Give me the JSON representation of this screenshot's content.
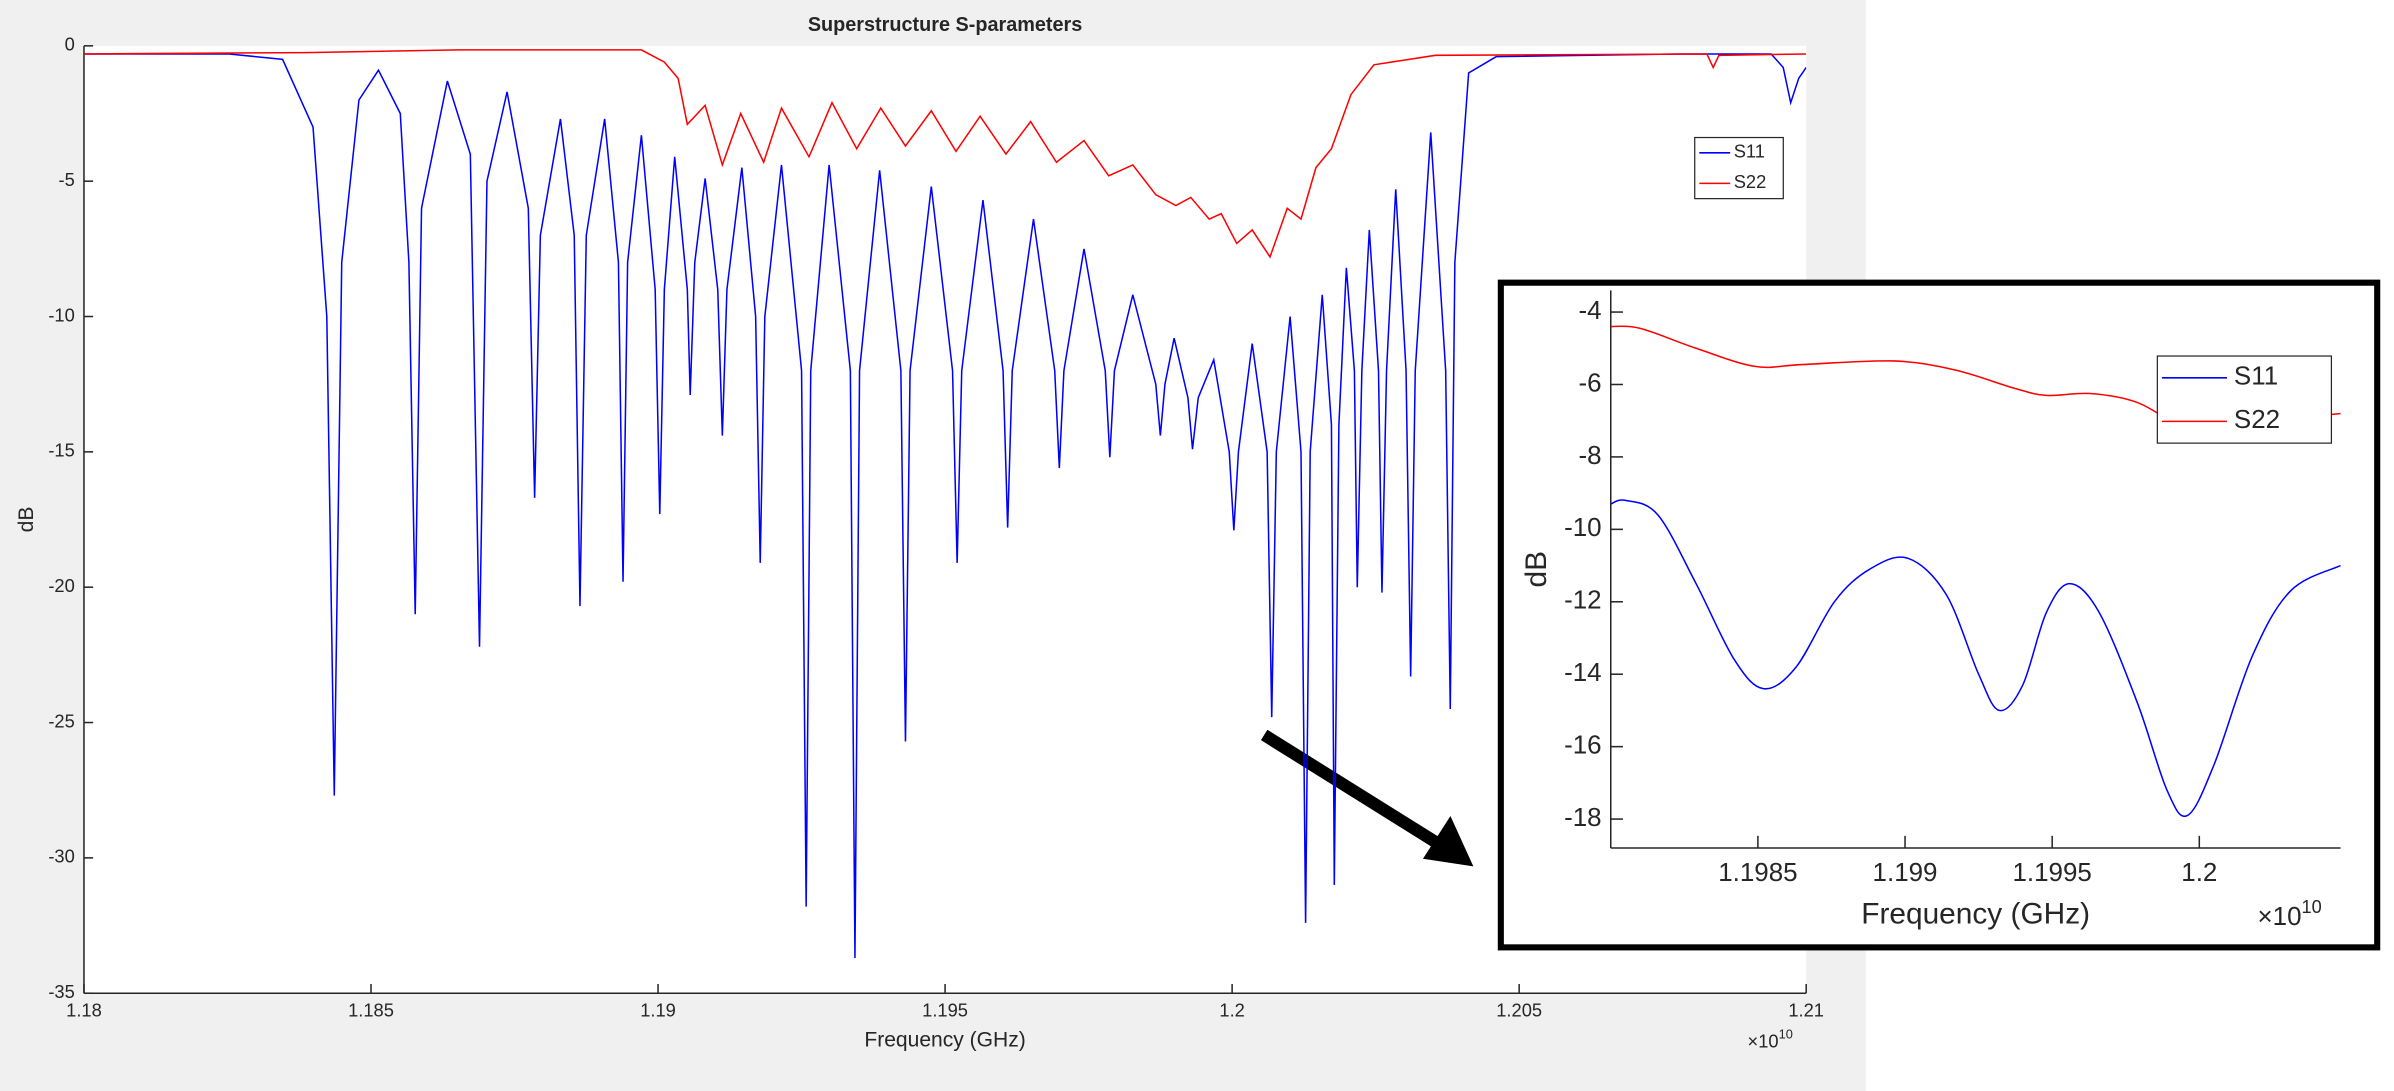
{
  "chart_data": [
    {
      "type": "line",
      "title": "Superstructure S-parameters",
      "xlabel": "Frequency (GHz)",
      "ylabel": "dB",
      "x_multiplier": {
        "base": "×10",
        "power": "10"
      },
      "xlim": [
        1.18,
        1.21
      ],
      "ylim": [
        -35,
        0
      ],
      "xticks": [
        1.18,
        1.185,
        1.19,
        1.195,
        1.2,
        1.205,
        1.21
      ],
      "yticks": [
        0,
        -5,
        -10,
        -15,
        -20,
        -25,
        -30,
        -35
      ],
      "legend": "northeast",
      "grid": false,
      "series": [
        {
          "name": "S11",
          "color": "#0000ff",
          "x": [
            1.18,
            1.18253,
            1.18346,
            1.18399,
            1.18423,
            1.18436,
            1.18449,
            1.18479,
            1.18513,
            1.18551,
            1.18566,
            1.18577,
            1.18588,
            1.18633,
            1.18673,
            1.18689,
            1.18702,
            1.18737,
            1.18774,
            1.18785,
            1.18795,
            1.1883,
            1.18854,
            1.18864,
            1.18875,
            1.18907,
            1.18931,
            1.18939,
            1.18947,
            1.18971,
            1.18995,
            1.19003,
            1.19011,
            1.19029,
            1.19051,
            1.19056,
            1.19064,
            1.19082,
            1.19104,
            1.19112,
            1.1912,
            1.19146,
            1.1917,
            1.19178,
            1.19186,
            1.19215,
            1.1925,
            1.19258,
            1.19266,
            1.19298,
            1.19335,
            1.19343,
            1.19351,
            1.19386,
            1.19423,
            1.19431,
            1.19439,
            1.19476,
            1.19513,
            1.19521,
            1.19529,
            1.19566,
            1.19601,
            1.19609,
            1.19617,
            1.19654,
            1.19691,
            1.19699,
            1.19707,
            1.19742,
            1.19779,
            1.19787,
            1.19795,
            1.19827,
            1.19867,
            1.19875,
            1.19883,
            1.19899,
            1.19923,
            1.19931,
            1.19941,
            1.19968,
            1.19995,
            1.20003,
            1.20011,
            1.20035,
            1.20061,
            1.20069,
            1.20077,
            1.20101,
            1.2012,
            1.20128,
            1.20136,
            1.20157,
            1.20173,
            1.20178,
            1.20186,
            1.20199,
            1.20213,
            1.20218,
            1.20226,
            1.20239,
            1.20255,
            1.20261,
            1.20269,
            1.20285,
            1.20303,
            1.20311,
            1.20319,
            1.20346,
            1.20372,
            1.2038,
            1.20388,
            1.20412,
            1.2046,
            1.20779,
            1.20939,
            1.2096,
            1.20973,
            1.20987,
            1.21
          ],
          "values": [
            -0.3,
            -0.3,
            -0.5,
            -3,
            -10,
            -27.7,
            -8,
            -2,
            -0.9,
            -2.5,
            -8,
            -21,
            -6,
            -1.3,
            -4,
            -22.2,
            -5,
            -1.7,
            -6,
            -16.7,
            -7,
            -2.7,
            -7,
            -20.7,
            -7,
            -2.7,
            -8,
            -19.8,
            -8,
            -3.3,
            -9,
            -17.3,
            -9,
            -4.1,
            -9,
            -12.9,
            -8,
            -4.9,
            -9,
            -14.4,
            -9,
            -4.5,
            -10,
            -19.1,
            -10,
            -4.4,
            -12,
            -31.8,
            -12,
            -4.4,
            -12,
            -33.7,
            -12,
            -4.6,
            -12,
            -25.7,
            -12,
            -5.2,
            -12,
            -19.1,
            -12,
            -5.7,
            -12,
            -17.8,
            -12,
            -6.4,
            -12,
            -15.6,
            -12,
            -7.5,
            -12,
            -15.2,
            -12,
            -9.2,
            -12.5,
            -14.4,
            -12.5,
            -10.8,
            -13,
            -14.9,
            -13,
            -11.6,
            -15,
            -17.9,
            -15,
            -11,
            -15,
            -24.8,
            -15,
            -10,
            -15,
            -32.4,
            -15,
            -9.2,
            -14,
            -31,
            -14,
            -8.2,
            -12,
            -20,
            -12,
            -6.8,
            -12,
            -20.2,
            -12,
            -5.3,
            -12,
            -23.3,
            -12,
            -3.2,
            -12,
            -24.5,
            -8,
            -1,
            -0.4,
            -0.3,
            -0.3,
            -0.8,
            -2.1,
            -1.2,
            -0.8
          ]
        },
        {
          "name": "S22",
          "color": "#ff0000",
          "x": [
            1.18,
            1.18386,
            1.18652,
            1.18971,
            1.19011,
            1.19035,
            1.19051,
            1.19082,
            1.19112,
            1.19144,
            1.19184,
            1.19215,
            1.19263,
            1.19303,
            1.19346,
            1.19388,
            1.19431,
            1.19476,
            1.19519,
            1.19561,
            1.19606,
            1.19649,
            1.19694,
            1.19742,
            1.19785,
            1.19827,
            1.19867,
            1.19902,
            1.19928,
            1.1996,
            1.19981,
            1.20008,
            1.20035,
            1.20066,
            1.20096,
            1.2012,
            1.20146,
            1.20173,
            1.20207,
            1.20247,
            1.20354,
            1.20827,
            1.20838,
            1.20848,
            1.21
          ],
          "values": [
            -0.3,
            -0.25,
            -0.15,
            -0.15,
            -0.6,
            -1.2,
            -2.9,
            -2.2,
            -4.4,
            -2.5,
            -4.3,
            -2.3,
            -4.1,
            -2.1,
            -3.8,
            -2.3,
            -3.7,
            -2.4,
            -3.9,
            -2.6,
            -4,
            -2.8,
            -4.3,
            -3.5,
            -4.8,
            -4.4,
            -5.5,
            -5.9,
            -5.6,
            -6.4,
            -6.2,
            -7.3,
            -6.8,
            -7.8,
            -6,
            -6.4,
            -4.5,
            -3.8,
            -1.8,
            -0.7,
            -0.35,
            -0.3,
            -0.8,
            -0.35,
            -0.3
          ]
        }
      ]
    },
    {
      "type": "line",
      "xlabel": "Frequency (GHz)",
      "ylabel": "dB",
      "x_multiplier": {
        "base": "×10",
        "power": "10"
      },
      "xlim": [
        1.198,
        1.20048
      ],
      "ylim": [
        -18.8,
        -3.4
      ],
      "xticks": [
        1.1985,
        1.199,
        1.1995,
        1.2
      ],
      "yticks": [
        -4,
        -6,
        -8,
        -10,
        -12,
        -14,
        -16,
        -18
      ],
      "legend": "northeast",
      "grid": false,
      "smooth": true,
      "series": [
        {
          "name": "S11",
          "color": "#0000ff",
          "x": [
            1.198,
            1.19805,
            1.19816,
            1.19829,
            1.19842,
            1.19852,
            1.19863,
            1.19876,
            1.19888,
            1.19901,
            1.19914,
            1.19925,
            1.19932,
            1.1994,
            1.19948,
            1.19956,
            1.19966,
            1.19979,
            1.19989,
            1.19996,
            1.20005,
            1.20018,
            1.20031,
            1.20048
          ],
          "values": [
            -9.3,
            -9.2,
            -9.6,
            -11.5,
            -13.6,
            -14.4,
            -13.8,
            -12,
            -11.1,
            -10.8,
            -11.8,
            -14,
            -15,
            -14.3,
            -12.3,
            -11.5,
            -12.3,
            -14.8,
            -17.2,
            -17.9,
            -16.5,
            -13.5,
            -11.7,
            -11
          ]
        },
        {
          "name": "S22",
          "color": "#ff0000",
          "x": [
            1.198,
            1.1981,
            1.19829,
            1.19849,
            1.19865,
            1.19896,
            1.19917,
            1.19937,
            1.19948,
            1.19963,
            1.19979,
            1.19994,
            1.2,
            1.20025,
            1.20048
          ],
          "values": [
            -4.4,
            -4.45,
            -5,
            -5.5,
            -5.45,
            -5.35,
            -5.6,
            -6.1,
            -6.3,
            -6.25,
            -6.5,
            -7.2,
            -7.35,
            -7,
            -6.8
          ]
        }
      ]
    }
  ]
}
